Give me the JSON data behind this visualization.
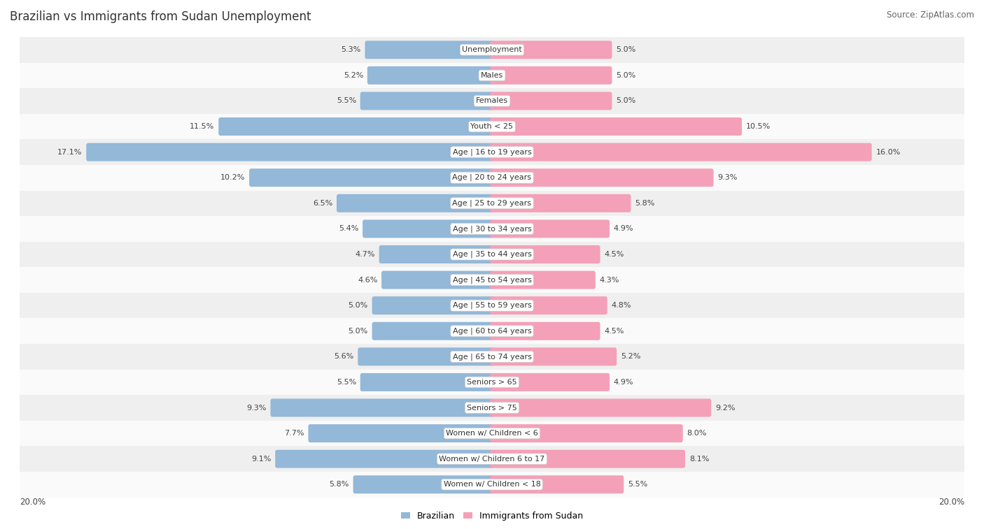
{
  "title": "Brazilian vs Immigrants from Sudan Unemployment",
  "source": "Source: ZipAtlas.com",
  "categories": [
    "Unemployment",
    "Males",
    "Females",
    "Youth < 25",
    "Age | 16 to 19 years",
    "Age | 20 to 24 years",
    "Age | 25 to 29 years",
    "Age | 30 to 34 years",
    "Age | 35 to 44 years",
    "Age | 45 to 54 years",
    "Age | 55 to 59 years",
    "Age | 60 to 64 years",
    "Age | 65 to 74 years",
    "Seniors > 65",
    "Seniors > 75",
    "Women w/ Children < 6",
    "Women w/ Children 6 to 17",
    "Women w/ Children < 18"
  ],
  "brazilian": [
    5.3,
    5.2,
    5.5,
    11.5,
    17.1,
    10.2,
    6.5,
    5.4,
    4.7,
    4.6,
    5.0,
    5.0,
    5.6,
    5.5,
    9.3,
    7.7,
    9.1,
    5.8
  ],
  "sudan": [
    5.0,
    5.0,
    5.0,
    10.5,
    16.0,
    9.3,
    5.8,
    4.9,
    4.5,
    4.3,
    4.8,
    4.5,
    5.2,
    4.9,
    9.2,
    8.0,
    8.1,
    5.5
  ],
  "brazil_color": "#93b8d8",
  "sudan_color": "#f4a0b8",
  "axis_max": 20.0,
  "row_color_even": "#efefef",
  "row_color_odd": "#fafafa",
  "title_fontsize": 12,
  "source_fontsize": 8.5,
  "label_fontsize": 8,
  "value_fontsize": 8,
  "legend_fontsize": 9
}
